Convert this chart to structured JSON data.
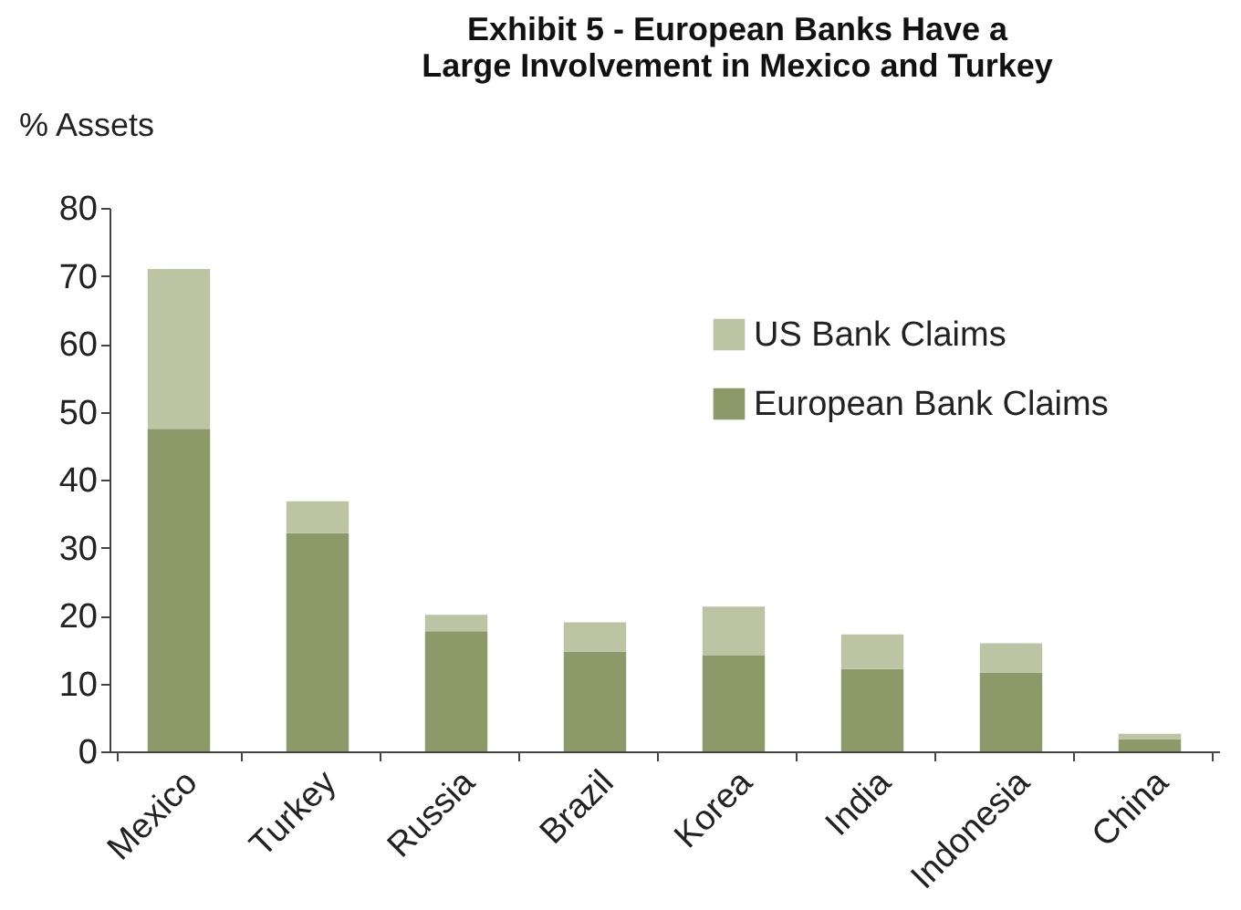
{
  "chart_data": {
    "type": "bar",
    "title": "Exhibit 5 - European Banks Have a Large Involvement in Mexico and Turkey",
    "ylabel": "% Assets",
    "categories": [
      "Mexico",
      "Turkey",
      "Russia",
      "Brazil",
      "Korea",
      "India",
      "Indonesia",
      "China"
    ],
    "series": [
      {
        "name": "European Bank Claims",
        "color": "#8c9a6a",
        "values": [
          47.5,
          32.1,
          17.7,
          14.7,
          14.1,
          12.1,
          11.6,
          1.8
        ]
      },
      {
        "name": "US Bank Claims",
        "color": "#bcc4a4",
        "values": [
          23.5,
          4.7,
          2.4,
          4.3,
          7.2,
          5.1,
          4.3,
          0.8
        ]
      }
    ],
    "stacked": true,
    "ylim": [
      0,
      80
    ],
    "yticks": [
      0,
      10,
      20,
      30,
      40,
      50,
      60,
      70,
      80
    ],
    "grid": false,
    "legend": "top right"
  }
}
